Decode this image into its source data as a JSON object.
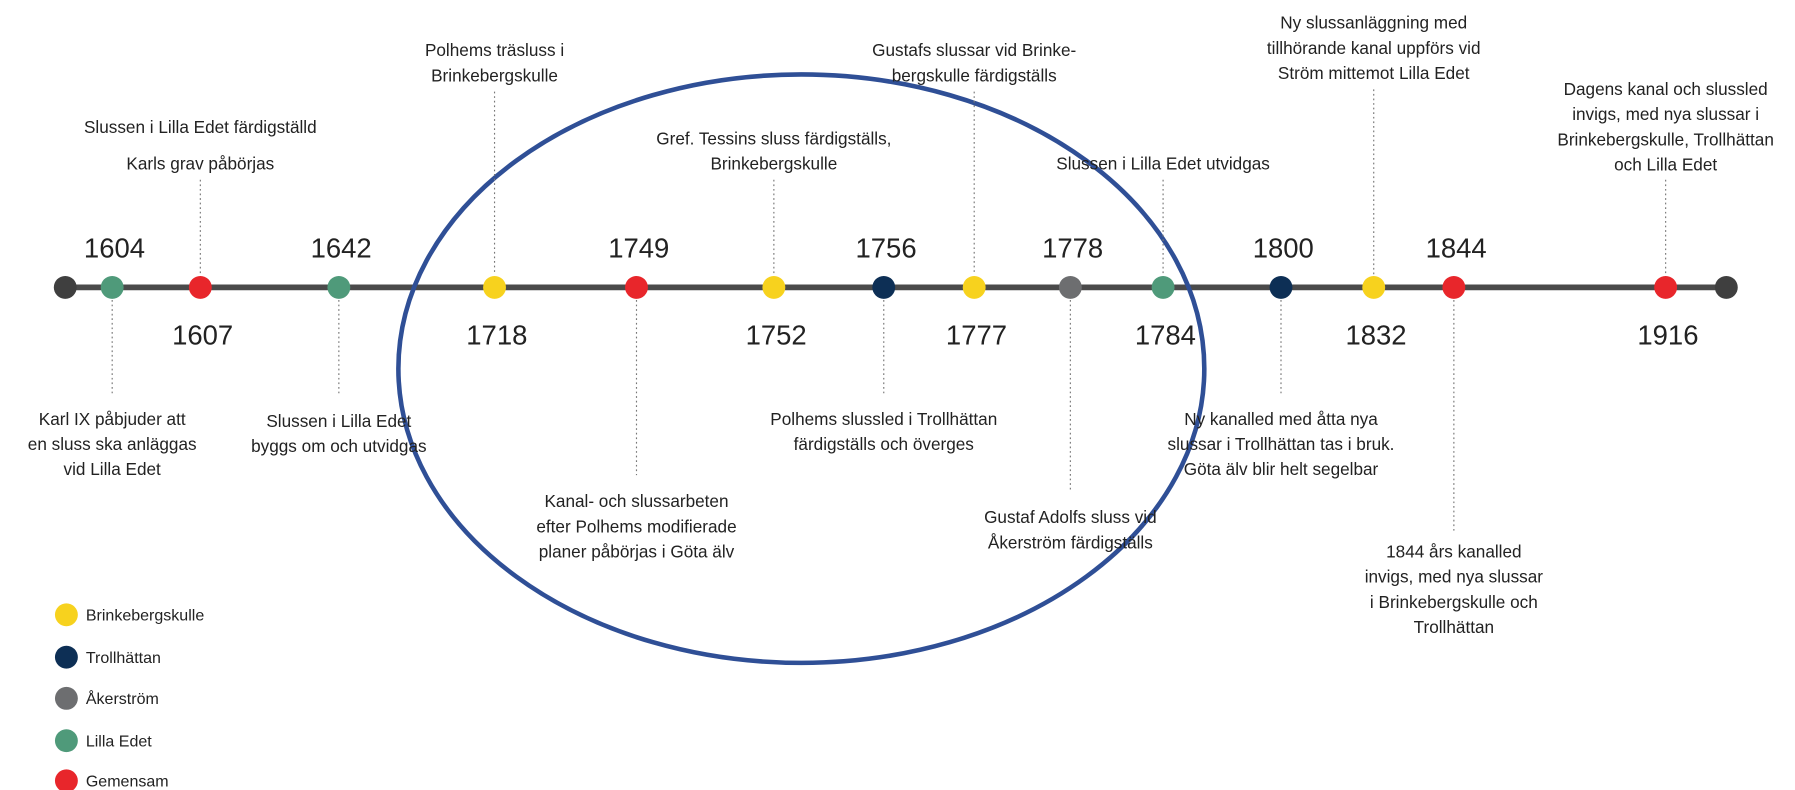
{
  "events": [
    {
      "year": "1604",
      "color": "#4f9a7a",
      "label": [
        "Karl IX påbjuder att",
        "en sluss ska anläggas",
        "vid Lilla Edet"
      ]
    },
    {
      "year": "1607",
      "color": "#e8262b",
      "label": [
        "Slussen i Lilla Edet färdigställd",
        "Karls grav påbörjas"
      ]
    },
    {
      "year": "1642",
      "color": "#4f9a7a",
      "label": [
        "Slussen i Lilla Edet",
        "byggs om och utvidgas"
      ]
    },
    {
      "year": "1718",
      "color": "#f7d21e",
      "label": [
        "Polhems träsluss i",
        "Brinkebergskulle"
      ]
    },
    {
      "year": "1749",
      "color": "#e8262b",
      "label": [
        "Kanal- och slussarbeten",
        "efter Polhems modifierade",
        "planer påbörjas i Göta älv"
      ]
    },
    {
      "year": "1752",
      "color": "#f7d21e",
      "label": [
        "Gref. Tessins sluss färdigställs,",
        "Brinkebergskulle"
      ]
    },
    {
      "year": "1756",
      "color": "#0d2f55",
      "label": [
        "Polhems slussled i Trollhättan",
        "färdigställs och överges"
      ]
    },
    {
      "year": "1777",
      "color": "#f7d21e",
      "label": [
        "Gustafs slussar vid Brinke-",
        "bergskulle färdigställs"
      ]
    },
    {
      "year": "1778",
      "color": "#6d6e70",
      "label": [
        "Gustaf Adolfs sluss vid",
        "Åkerström färdigställs"
      ]
    },
    {
      "year": "1784",
      "color": "#4f9a7a",
      "label": [
        "Slussen i Lilla Edet utvidgas"
      ]
    },
    {
      "year": "1800",
      "color": "#0d2f55",
      "label": [
        "Ny kanalled med åtta nya",
        "slussar i Trollhättan tas i bruk.",
        "Göta älv blir helt segelbar"
      ]
    },
    {
      "year": "1832",
      "color": "#f7d21e",
      "label": [
        "Ny slussanläggning med",
        "tillhörande kanal uppförs vid",
        "Ström mittemot Lilla Edet"
      ]
    },
    {
      "year": "1844",
      "color": "#e8262b",
      "label": [
        "1844 års kanalled",
        "invigs, med nya slussar",
        "i Brinkebergskulle och",
        "Trollhättan"
      ]
    },
    {
      "year": "1916",
      "color": "#e8262b",
      "label": [
        "Dagens kanal och slussled",
        "invigs, med nya slussar i",
        "Brinkebergskulle, Trollhättan",
        "och Lilla Edet"
      ]
    }
  ],
  "legend": [
    {
      "label": "Brinkebergskulle",
      "color": "#f7d21e"
    },
    {
      "label": "Trollhättan",
      "color": "#0d2f55"
    },
    {
      "label": "Åkerström",
      "color": "#6d6e70"
    },
    {
      "label": "Lilla Edet",
      "color": "#4f9a7a"
    },
    {
      "label": "Gemensam",
      "color": "#e8262b"
    }
  ]
}
